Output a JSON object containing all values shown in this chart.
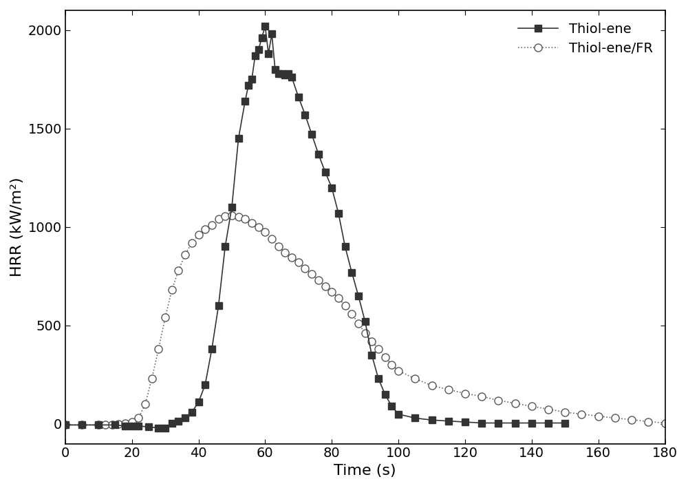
{
  "title": "",
  "xlabel": "Time (s)",
  "ylabel": "HRR (kW/m²)",
  "xlim": [
    0,
    180
  ],
  "ylim": [
    -100,
    2100
  ],
  "xticks": [
    0,
    20,
    40,
    60,
    80,
    100,
    120,
    140,
    160,
    180
  ],
  "yticks": [
    0,
    500,
    1000,
    1500,
    2000
  ],
  "background_color": "#ffffff",
  "thiol_ene": {
    "label": "Thiol-ene",
    "color": "#333333",
    "marker": "s",
    "markersize": 7,
    "linestyle": "-",
    "linewidth": 1.2,
    "x": [
      0,
      5,
      10,
      15,
      18,
      20,
      22,
      25,
      28,
      30,
      32,
      34,
      36,
      38,
      40,
      42,
      44,
      46,
      48,
      50,
      52,
      54,
      55,
      56,
      57,
      58,
      59,
      60,
      61,
      62,
      63,
      64,
      65,
      66,
      67,
      68,
      70,
      72,
      74,
      76,
      78,
      80,
      82,
      84,
      86,
      88,
      90,
      92,
      94,
      96,
      98,
      100,
      105,
      110,
      115,
      120,
      125,
      130,
      135,
      140,
      145,
      150
    ],
    "y": [
      -5,
      -5,
      -5,
      -5,
      -10,
      -10,
      -10,
      -15,
      -20,
      -20,
      5,
      15,
      30,
      60,
      110,
      200,
      380,
      600,
      900,
      1100,
      1450,
      1640,
      1720,
      1750,
      1870,
      1900,
      1960,
      2020,
      1880,
      1980,
      1800,
      1780,
      1780,
      1770,
      1780,
      1760,
      1660,
      1570,
      1470,
      1370,
      1280,
      1200,
      1070,
      900,
      770,
      650,
      520,
      350,
      230,
      150,
      90,
      50,
      30,
      20,
      15,
      10,
      5,
      5,
      5,
      5,
      5,
      5
    ]
  },
  "thiol_ene_fr": {
    "label": "Thiol-ene/FR",
    "color": "#666666",
    "marker": "o",
    "markersize": 8,
    "linestyle": ":",
    "linewidth": 1.2,
    "markerfacecolor": "white",
    "markeredgecolor": "#555555",
    "x": [
      0,
      5,
      10,
      12,
      14,
      16,
      18,
      20,
      22,
      24,
      26,
      28,
      30,
      32,
      34,
      36,
      38,
      40,
      42,
      44,
      46,
      48,
      50,
      52,
      54,
      56,
      58,
      60,
      62,
      64,
      66,
      68,
      70,
      72,
      74,
      76,
      78,
      80,
      82,
      84,
      86,
      88,
      90,
      92,
      94,
      96,
      98,
      100,
      105,
      110,
      115,
      120,
      125,
      130,
      135,
      140,
      145,
      150,
      155,
      160,
      165,
      170,
      175,
      180
    ],
    "y": [
      -5,
      -5,
      -5,
      -5,
      -5,
      0,
      5,
      10,
      30,
      100,
      230,
      380,
      540,
      680,
      780,
      860,
      920,
      960,
      990,
      1010,
      1040,
      1055,
      1060,
      1050,
      1040,
      1020,
      1000,
      975,
      940,
      900,
      870,
      845,
      820,
      790,
      760,
      730,
      700,
      670,
      640,
      600,
      560,
      510,
      460,
      420,
      380,
      340,
      300,
      270,
      230,
      195,
      175,
      155,
      140,
      120,
      105,
      90,
      75,
      60,
      50,
      40,
      30,
      22,
      12,
      5
    ]
  },
  "legend_fontsize": 14,
  "axis_fontsize": 16,
  "tick_fontsize": 14
}
